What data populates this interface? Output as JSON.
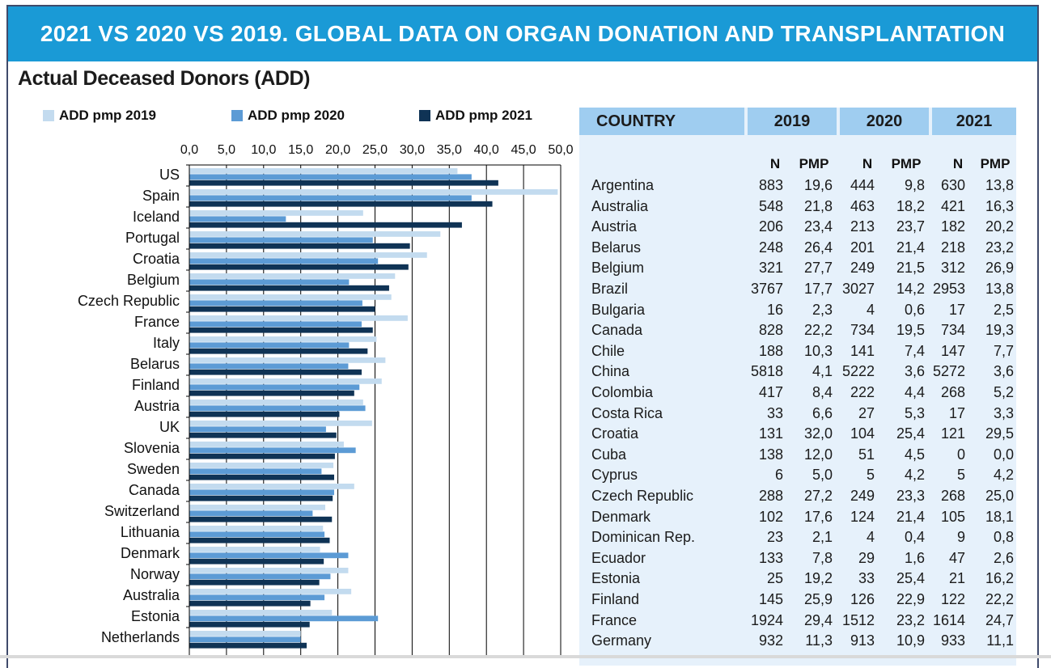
{
  "header": {
    "title": "2021 VS 2020 VS 2019. GLOBAL DATA ON ORGAN DONATION AND TRANSPLANTATION"
  },
  "section": {
    "title": "Actual Deceased Donors (ADD)"
  },
  "colors": {
    "banner": "#1a9ad6",
    "s2019": "#c3dbef",
    "s2020": "#5c9bd5",
    "s2021": "#0f3355",
    "table_bg": "#e6f1fb",
    "table_header": "#9fcdf0"
  },
  "chart_data": {
    "type": "bar",
    "orientation": "horizontal",
    "xlim": [
      0,
      50
    ],
    "xticks": [
      "0,0",
      "5,0",
      "10,0",
      "15,0",
      "20,0",
      "25,0",
      "30,0",
      "35,0",
      "40,0",
      "45,0",
      "50,0"
    ],
    "grid": true,
    "legend_position": "top",
    "categories": [
      "US",
      "Spain",
      "Iceland",
      "Portugal",
      "Croatia",
      "Belgium",
      "Czech Republic",
      "France",
      "Italy",
      "Belarus",
      "Finland",
      "Austria",
      "UK",
      "Slovenia",
      "Sweden",
      "Canada",
      "Switzerland",
      "Lithuania",
      "Denmark",
      "Norway",
      "Australia",
      "Estonia",
      "Netherlands"
    ],
    "series": [
      {
        "name": "ADD pmp 2019",
        "values": [
          36.1,
          49.6,
          23.4,
          33.8,
          32.0,
          27.7,
          27.2,
          29.4,
          25.2,
          26.4,
          25.9,
          23.4,
          24.6,
          20.8,
          19.4,
          22.2,
          18.3,
          18.0,
          17.6,
          21.4,
          21.8,
          19.2,
          15.0
        ]
      },
      {
        "name": "ADD pmp 2020",
        "values": [
          38.0,
          38.0,
          13.0,
          24.7,
          25.4,
          21.5,
          23.3,
          23.2,
          21.5,
          21.4,
          22.9,
          23.7,
          18.4,
          22.4,
          17.8,
          19.5,
          16.6,
          18.2,
          21.4,
          19.0,
          18.2,
          25.4,
          15.0
        ]
      },
      {
        "name": "ADD pmp 2021",
        "values": [
          41.6,
          40.8,
          36.7,
          29.7,
          29.5,
          26.9,
          25.0,
          24.7,
          24.0,
          23.2,
          22.2,
          20.2,
          19.8,
          19.6,
          19.5,
          19.3,
          19.2,
          18.9,
          18.1,
          17.5,
          16.3,
          16.2,
          15.8
        ]
      }
    ]
  },
  "table": {
    "headers": {
      "country": "COUNTRY",
      "y2019": "2019",
      "y2020": "2020",
      "y2021": "2021"
    },
    "subheaders": [
      "N",
      "PMP",
      "N",
      "PMP",
      "N",
      "PMP"
    ],
    "rows": [
      [
        "Argentina",
        "883",
        "19,6",
        "444",
        "9,8",
        "630",
        "13,8"
      ],
      [
        "Australia",
        "548",
        "21,8",
        "463",
        "18,2",
        "421",
        "16,3"
      ],
      [
        "Austria",
        "206",
        "23,4",
        "213",
        "23,7",
        "182",
        "20,2"
      ],
      [
        "Belarus",
        "248",
        "26,4",
        "201",
        "21,4",
        "218",
        "23,2"
      ],
      [
        "Belgium",
        "321",
        "27,7",
        "249",
        "21,5",
        "312",
        "26,9"
      ],
      [
        "Brazil",
        "3767",
        "17,7",
        "3027",
        "14,2",
        "2953",
        "13,8"
      ],
      [
        "Bulgaria",
        "16",
        "2,3",
        "4",
        "0,6",
        "17",
        "2,5"
      ],
      [
        "Canada",
        "828",
        "22,2",
        "734",
        "19,5",
        "734",
        "19,3"
      ],
      [
        "Chile",
        "188",
        "10,3",
        "141",
        "7,4",
        "147",
        "7,7"
      ],
      [
        "China",
        "5818",
        "4,1",
        "5222",
        "3,6",
        "5272",
        "3,6"
      ],
      [
        "Colombia",
        "417",
        "8,4",
        "222",
        "4,4",
        "268",
        "5,2"
      ],
      [
        "Costa Rica",
        "33",
        "6,6",
        "27",
        "5,3",
        "17",
        "3,3"
      ],
      [
        "Croatia",
        "131",
        "32,0",
        "104",
        "25,4",
        "121",
        "29,5"
      ],
      [
        "Cuba",
        "138",
        "12,0",
        "51",
        "4,5",
        "0",
        "0,0"
      ],
      [
        "Cyprus",
        "6",
        "5,0",
        "5",
        "4,2",
        "5",
        "4,2"
      ],
      [
        "Czech Republic",
        "288",
        "27,2",
        "249",
        "23,3",
        "268",
        "25,0"
      ],
      [
        "Denmark",
        "102",
        "17,6",
        "124",
        "21,4",
        "105",
        "18,1"
      ],
      [
        "Dominican Rep.",
        "23",
        "2,1",
        "4",
        "0,4",
        "9",
        "0,8"
      ],
      [
        "Ecuador",
        "133",
        "7,8",
        "29",
        "1,6",
        "47",
        "2,6"
      ],
      [
        "Estonia",
        "25",
        "19,2",
        "33",
        "25,4",
        "21",
        "16,2"
      ],
      [
        "Finland",
        "145",
        "25,9",
        "126",
        "22,9",
        "122",
        "22,2"
      ],
      [
        "France",
        "1924",
        "29,4",
        "1512",
        "23,2",
        "1614",
        "24,7"
      ],
      [
        "Germany",
        "932",
        "11,3",
        "913",
        "10,9",
        "933",
        "11,1"
      ]
    ]
  }
}
